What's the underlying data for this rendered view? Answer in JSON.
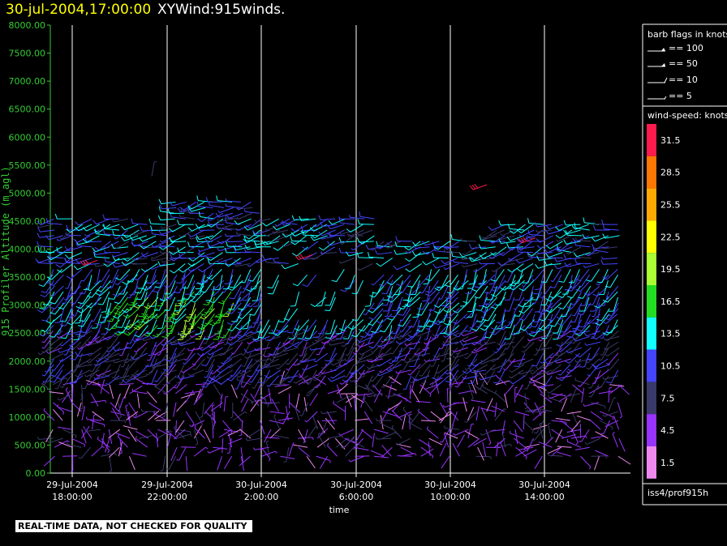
{
  "header": {
    "date_text": "30-jul-2004,17:00:00",
    "title_text": "XYWind:915winds."
  },
  "footer_note": "REAL-TIME DATA, NOT CHECKED FOR QUALITY",
  "station_label": "iss4/prof915h",
  "colors": {
    "background": "#000000",
    "axis": "#33cc33",
    "gridline": "#ffffff",
    "barb_flag_legend": "#ffffff"
  },
  "barb_legend": {
    "title": "barb flags in knots",
    "entries": [
      {
        "label": "== 100"
      },
      {
        "label": "== 50"
      },
      {
        "label": "== 10"
      },
      {
        "label": "== 5"
      }
    ]
  },
  "speed_legend": {
    "title": "wind-speed: knots",
    "entries": [
      {
        "label": "31.5",
        "color": "#ff1a4d"
      },
      {
        "label": "28.5",
        "color": "#ff7700"
      },
      {
        "label": "25.5",
        "color": "#ffaa00"
      },
      {
        "label": "22.5",
        "color": "#ffff00"
      },
      {
        "label": "19.5",
        "color": "#aaff33"
      },
      {
        "label": "16.5",
        "color": "#22dd22"
      },
      {
        "label": "13.5",
        "color": "#11ffff"
      },
      {
        "label": "10.5",
        "color": "#4444ff"
      },
      {
        "label": "7.5",
        "color": "#3a3a6a"
      },
      {
        "label": "4.5",
        "color": "#9933ff"
      },
      {
        "label": "1.5",
        "color": "#ee88ee"
      }
    ]
  },
  "chart_data": {
    "type": "wind-barb",
    "title": "XYWind:915winds.",
    "ylabel": "915 Profiler Altitude (m agl)",
    "xlabel": "time",
    "ylim": [
      0,
      8000
    ],
    "yticks": [
      "0.00",
      "500.00",
      "1000.00",
      "1500.00",
      "2000.00",
      "2500.00",
      "3000.00",
      "3500.00",
      "4000.00",
      "4500.00",
      "5000.00",
      "5500.00",
      "6000.00",
      "6500.00",
      "7000.00",
      "7500.00",
      "8000.00"
    ],
    "x_range_hours": [
      16.0,
      34.7
    ],
    "xticks": [
      {
        "line1": "29-Jul-2004",
        "line2": "18:00:00",
        "hour": 18
      },
      {
        "line1": "29-Jul-2004",
        "line2": "22:00:00",
        "hour": 22
      },
      {
        "line1": "30-Jul-2004",
        "line2": "2:00:00",
        "hour": 26
      },
      {
        "line1": "30-Jul-2004",
        "line2": "6:00:00",
        "hour": 30
      },
      {
        "line1": "30-Jul-2004",
        "line2": "10:00:00",
        "hour": 34
      },
      {
        "line1": "30-Jul-2004",
        "line2": "14:00:00",
        "hour": 38
      }
    ],
    "grid": "vertical lines at x ticks",
    "profile_step_hours": 0.25,
    "gate_spacing_m": 100,
    "gate_range_m": [
      300,
      4900
    ]
  }
}
